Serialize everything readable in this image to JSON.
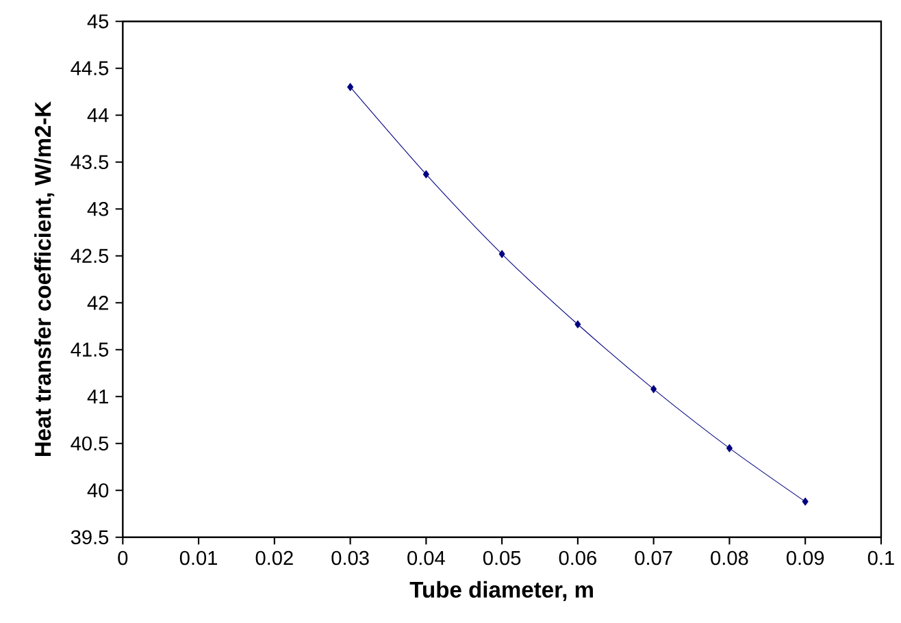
{
  "chart_data": {
    "type": "line",
    "xlabel": "Tube diameter, m",
    "ylabel": "Heat transfer coefficient, W/m2-K",
    "x": [
      0.03,
      0.04,
      0.05,
      0.06,
      0.07,
      0.08,
      0.09
    ],
    "series": [
      {
        "color": "#000080",
        "values": [
          44.3,
          43.37,
          42.52,
          41.77,
          41.08,
          40.45,
          39.88
        ]
      }
    ],
    "xlim": [
      0,
      0.1
    ],
    "xticks": [
      0,
      0.01,
      0.02,
      0.03,
      0.04,
      0.05,
      0.06,
      0.07,
      0.08,
      0.09,
      0.1
    ],
    "ylim": [
      39.5,
      45
    ],
    "yticks": [
      39.5,
      40,
      40.5,
      41,
      41.5,
      42,
      42.5,
      43,
      43.5,
      44,
      44.5,
      45
    ],
    "marker": "diamond",
    "line_style": "solid",
    "grid": false
  }
}
